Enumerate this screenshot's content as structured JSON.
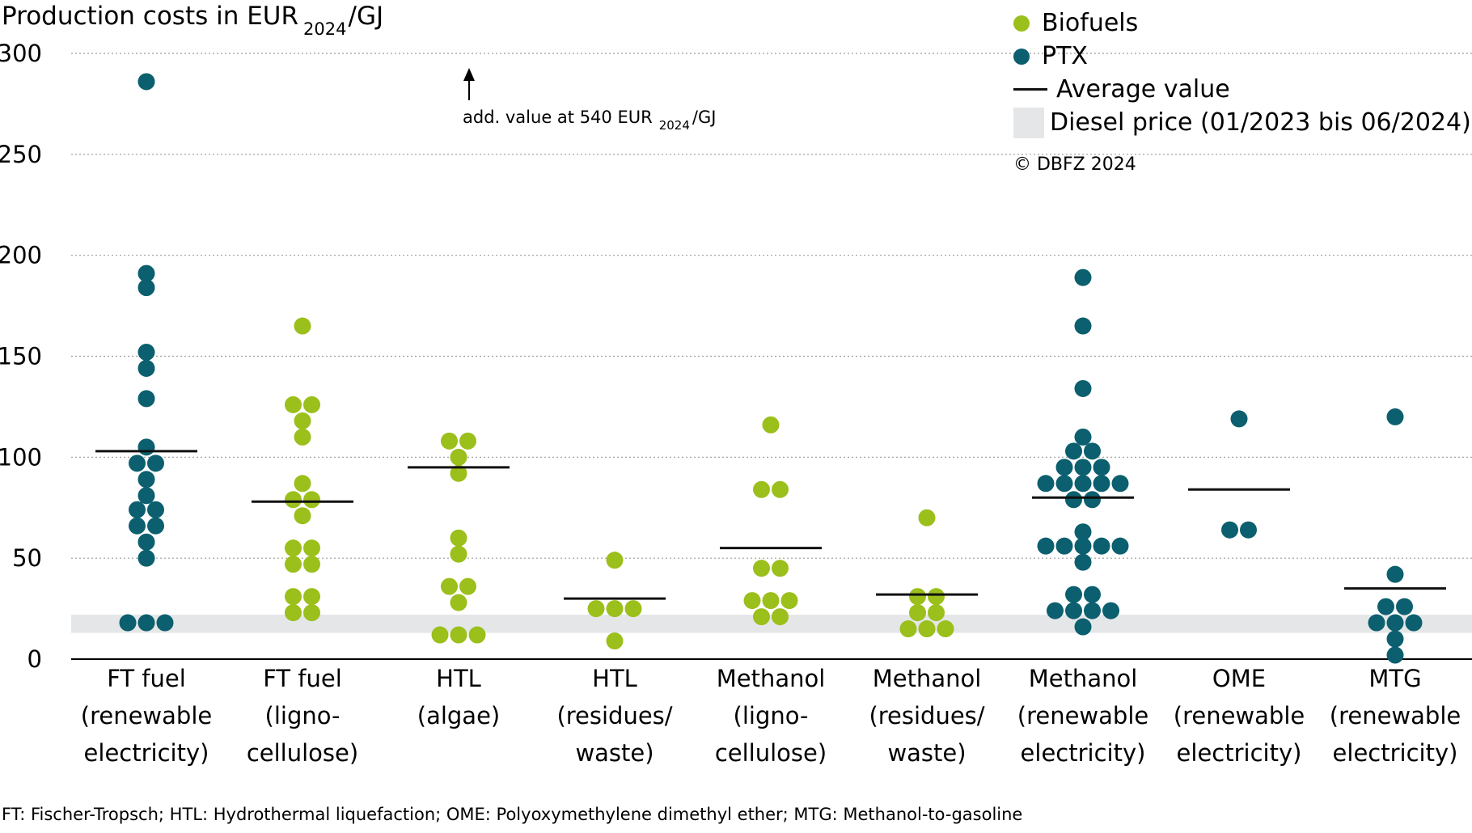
{
  "chart_data": {
    "type": "scatter",
    "y_label_main": "Production costs in EUR",
    "y_label_sub": "2024",
    "y_label_unit": "/GJ",
    "ylim": [
      0,
      300
    ],
    "yticks": [
      0,
      50,
      100,
      150,
      200,
      250,
      300
    ],
    "grid": "horizontal dotted",
    "legend_position": "top-right",
    "colors": {
      "Biofuels": "#9bbf1b",
      "PTX": "#0b5f6e",
      "average": "#111111",
      "diesel_band": "#e4e6e8"
    },
    "diesel_band": {
      "label": "Diesel price (01/2023 bis 06/2024)",
      "range": [
        13,
        22
      ]
    },
    "legend": {
      "biofuels": "Biofuels",
      "ptx": "PTX",
      "average": "Average value",
      "diesel": "Diesel price (01/2023 bis 06/2024)"
    },
    "copyright": "© DBFZ 2024",
    "annotation": {
      "text_main": "add. value at 540 EUR",
      "text_sub": "2024",
      "text_unit": "/GJ"
    },
    "footnote": "FT: Fischer-Tropsch; HTL: Hydrothermal liquefaction; OME: Polyoxymethylene dimethyl ether; MTG: Methanol-to-gasoline",
    "categories": [
      {
        "label_lines": [
          "FT fuel",
          "(renewable",
          "electricity)"
        ],
        "series": "PTX",
        "average": 103,
        "values": [
          286,
          191,
          184,
          152,
          144,
          129,
          105,
          97,
          97,
          89,
          81,
          74,
          74,
          66,
          66,
          58,
          50,
          18,
          18,
          18
        ]
      },
      {
        "label_lines": [
          "FT fuel",
          "(ligno-",
          "cellulose)"
        ],
        "series": "Biofuels",
        "average": 78,
        "values": [
          165,
          126,
          126,
          118,
          110,
          87,
          79,
          79,
          71,
          55,
          55,
          47,
          47,
          31,
          31,
          23,
          23
        ]
      },
      {
        "label_lines": [
          "HTL",
          "(algae)"
        ],
        "series": "Biofuels",
        "average": 95,
        "values": [
          108,
          108,
          100,
          92,
          60,
          52,
          36,
          36,
          28,
          12,
          12,
          12
        ]
      },
      {
        "label_lines": [
          "HTL",
          "(residues/",
          "waste)"
        ],
        "series": "Biofuels",
        "average": 30,
        "values": [
          49,
          25,
          25,
          25,
          9
        ]
      },
      {
        "label_lines": [
          "Methanol",
          "(ligno-",
          "cellulose)"
        ],
        "series": "Biofuels",
        "average": 55,
        "values": [
          116,
          84,
          84,
          45,
          45,
          29,
          29,
          29,
          21,
          21
        ]
      },
      {
        "label_lines": [
          "Methanol",
          "(residues/",
          "waste)"
        ],
        "series": "Biofuels",
        "average": 32,
        "values": [
          70,
          31,
          31,
          23,
          23,
          15,
          15,
          15
        ]
      },
      {
        "label_lines": [
          "Methanol",
          "(renewable",
          "electricity)"
        ],
        "series": "PTX",
        "average": 80,
        "values": [
          189,
          165,
          134,
          110,
          103,
          103,
          95,
          95,
          95,
          87,
          87,
          87,
          87,
          87,
          79,
          79,
          63,
          56,
          56,
          56,
          56,
          56,
          48,
          32,
          32,
          24,
          24,
          24,
          24,
          16
        ]
      },
      {
        "label_lines": [
          "OME",
          "(renewable",
          "electricity)"
        ],
        "series": "PTX",
        "average": 84,
        "values": [
          119,
          64,
          64
        ]
      },
      {
        "label_lines": [
          "MTG",
          "(renewable",
          "electricity)"
        ],
        "series": "PTX",
        "average": 35,
        "values": [
          120,
          42,
          26,
          26,
          18,
          18,
          18,
          10,
          2
        ]
      }
    ]
  }
}
